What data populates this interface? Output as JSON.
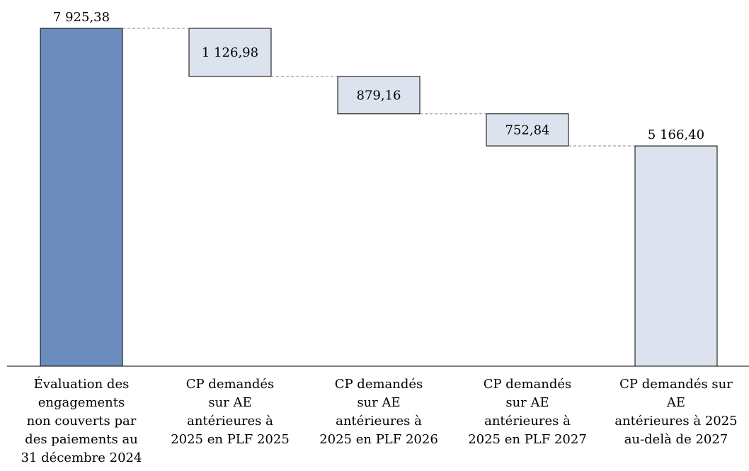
{
  "chart_data": {
    "type": "waterfall",
    "categories": [
      "Évaluation des\nengagements\nnon couverts par\ndes paiements au\n31 décembre 2024",
      "CP demandés\nsur AE\nantérieures à\n2025 en PLF 2025",
      "CP demandés\nsur AE\nantérieures à\n2025 en PLF 2026",
      "CP demandés\nsur AE\nantérieures à\n2025 en PLF 2027",
      "CP demandés sur\nAE\nantérieures à 2025\nau-delà de 2027"
    ],
    "values": [
      7925.38,
      1126.98,
      879.16,
      752.84,
      5166.4
    ],
    "value_labels": [
      "7 925,38",
      "1 126,98",
      "879,16",
      "752,84",
      "5 166,40"
    ],
    "colors": [
      "#6b8cbc",
      "#dde3ee",
      "#dde3ee",
      "#dde3ee",
      "#dde3ee"
    ]
  }
}
